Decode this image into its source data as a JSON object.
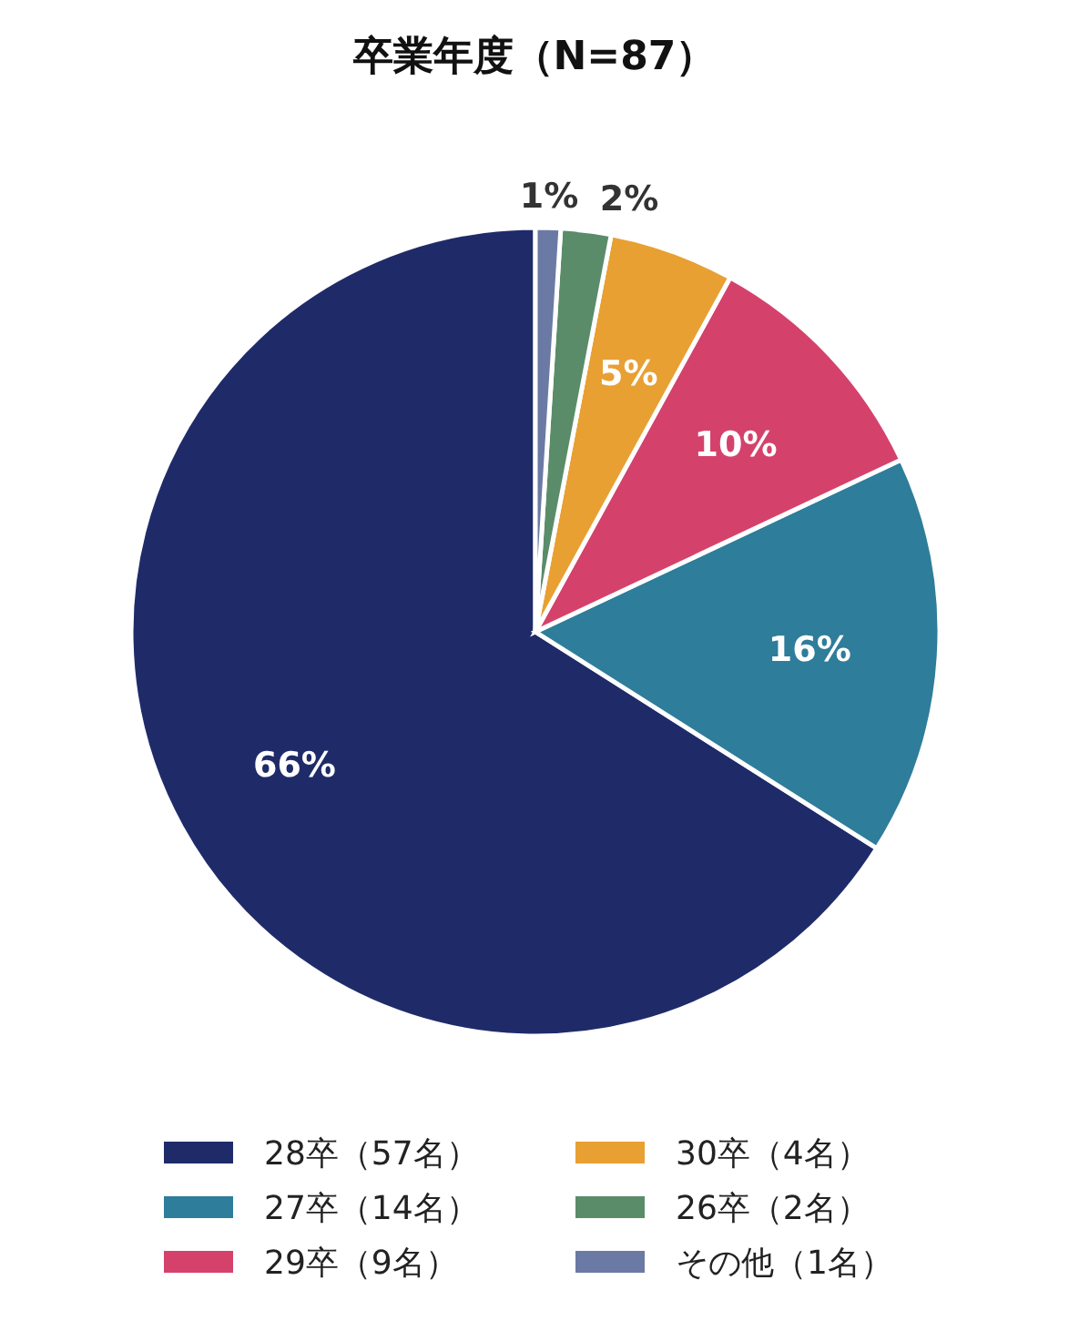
{
  "chart_data": {
    "type": "pie",
    "title": "卒業年度（N=87）",
    "categories": [
      "28卒（57名）",
      "27卒（14名）",
      "29卒（9名）",
      "30卒（4名）",
      "26卒（2名）",
      "その他（1名）"
    ],
    "values": [
      66,
      16,
      10,
      5,
      2,
      1
    ],
    "value_labels": [
      "66%",
      "16%",
      "10%",
      "5%",
      "2%",
      "1%"
    ],
    "colors": [
      "#1f2b69",
      "#2e7d9a",
      "#d4426c",
      "#e8a033",
      "#5a8c6a",
      "#6b7aa5"
    ],
    "legend": "bottom"
  }
}
